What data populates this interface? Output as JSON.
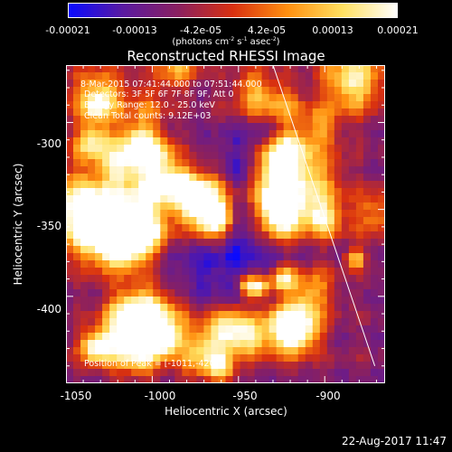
{
  "colorbar": {
    "tick_labels": [
      "-0.00021",
      "-0.00013",
      "-4.2e-05",
      "4.2e-05",
      "0.00013",
      "0.00021"
    ],
    "unit_prefix": "(photons cm",
    "unit_exp1": "-2",
    "unit_mid1": " s",
    "unit_exp2": "-1",
    "unit_mid2": " asec",
    "unit_exp3": "-2",
    "unit_suffix": ")",
    "colors": [
      "#0a0aff",
      "#5a1aa0",
      "#8a2060",
      "#d83010",
      "#ff9010",
      "#ffe060",
      "#ffffff"
    ]
  },
  "title": "Reconstructed RHESSI Image",
  "annotations": {
    "line1": "8-Mar-2015 07:41:44.000 to 07:51:44.000",
    "line2": "Detectors: 3F 5F 6F 7F 8F 9F, Att 0",
    "line3": "Energy Range: 12.0 - 25.0 keV",
    "line4": "Clean    Total counts: 9.12E+03",
    "peak": "Position of Peak = [-1011,-420]"
  },
  "axes": {
    "x_title": "Heliocentric X (arcsec)",
    "y_title": "Heliocentric Y (arcsec)",
    "x_ticks": [
      "-1050",
      "-1000",
      "-950",
      "-900"
    ],
    "y_ticks": [
      "-300",
      "-350",
      "-400"
    ],
    "x_range": [
      -1050,
      -865
    ],
    "y_range": [
      -450,
      -267
    ]
  },
  "chart_data": {
    "type": "heatmap",
    "title": "Reconstructed RHESSI Image",
    "xlabel": "Heliocentric X (arcsec)",
    "ylabel": "Heliocentric Y (arcsec)",
    "xlim": [
      -1050,
      -865
    ],
    "ylim": [
      -450,
      -267
    ],
    "zlim": [
      -0.00021,
      0.00021
    ],
    "peak": [
      -1011,
      -420
    ],
    "limb_line": [
      [
        -930,
        -267
      ],
      [
        -871,
        -440
      ]
    ]
  },
  "footer": {
    "timestamp": "22-Aug-2017 11:47"
  }
}
